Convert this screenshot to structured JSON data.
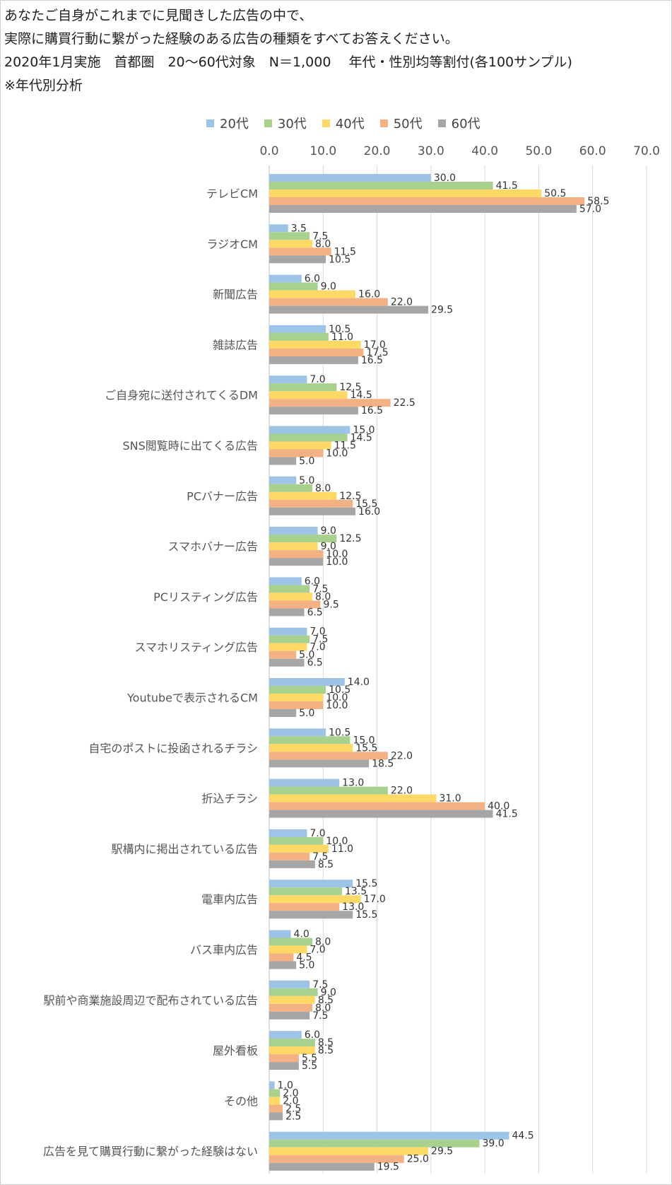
{
  "title_lines": [
    "あなたご自身がこれまでに見聞きした広告の中で、",
    "実際に購買行動に繋がった経験のある広告の種類をすべてお答えください。",
    "2020年1月実施　首都圏　20～60代対象　N＝1,000　 年代・性別均等割付(各100サンプル)",
    "※年代別分析"
  ],
  "chart_data": {
    "type": "bar",
    "orientation": "horizontal",
    "title": "あなたご自身がこれまでに見聞きした広告の中で、実際に購買行動に繋がった経験のある広告の種類をすべてお答えください。",
    "xlim": [
      0,
      70
    ],
    "xticks": [
      "0.0",
      "10.0",
      "20.0",
      "30.0",
      "40.0",
      "50.0",
      "60.0",
      "70.0"
    ],
    "grid": true,
    "legend_position": "top",
    "categories": [
      "テレビCM",
      "ラジオCM",
      "新聞広告",
      "雑誌広告",
      "ご自身宛に送付されてくるDM",
      "SNS閲覧時に出てくる広告",
      "PCバナー広告",
      "スマホバナー広告",
      "PCリスティング広告",
      "スマホリスティング広告",
      "Youtubeで表示されるCM",
      "自宅のポストに投函されるチラシ",
      "折込チラシ",
      "駅構内に掲出されている広告",
      "電車内広告",
      "バス車内広告",
      "駅前や商業施設周辺で配布されている広告",
      "屋外看板",
      "その他",
      "広告を見て購買行動に繋がった経験はない"
    ],
    "series": [
      {
        "name": "20代",
        "color": "#9dc3e6",
        "values": [
          30.0,
          3.5,
          6.0,
          10.5,
          7.0,
          15.0,
          5.0,
          9.0,
          6.0,
          7.0,
          14.0,
          10.5,
          13.0,
          7.0,
          15.5,
          4.0,
          7.5,
          6.0,
          1.0,
          44.5
        ]
      },
      {
        "name": "30代",
        "color": "#a9d18e",
        "values": [
          41.5,
          7.5,
          9.0,
          11.0,
          12.5,
          14.5,
          8.0,
          12.5,
          7.5,
          7.5,
          10.5,
          15.0,
          22.0,
          10.0,
          13.5,
          8.0,
          9.0,
          8.5,
          2.0,
          39.0
        ]
      },
      {
        "name": "40代",
        "color": "#ffd966",
        "values": [
          50.5,
          8.0,
          16.0,
          17.0,
          14.5,
          11.5,
          12.5,
          9.0,
          8.0,
          7.0,
          10.0,
          15.5,
          31.0,
          11.0,
          17.0,
          7.0,
          8.5,
          8.5,
          2.0,
          29.5
        ]
      },
      {
        "name": "50代",
        "color": "#f4b183",
        "values": [
          58.5,
          11.5,
          22.0,
          17.5,
          22.5,
          10.0,
          15.5,
          10.0,
          9.5,
          5.0,
          10.0,
          22.0,
          40.0,
          7.5,
          13.0,
          4.5,
          8.0,
          5.5,
          2.5,
          25.0
        ]
      },
      {
        "name": "60代",
        "color": "#a6a6a6",
        "values": [
          57.0,
          10.5,
          29.5,
          16.5,
          16.5,
          5.0,
          16.0,
          10.0,
          6.5,
          6.5,
          5.0,
          18.5,
          41.5,
          8.5,
          15.5,
          5.0,
          7.5,
          5.5,
          2.5,
          19.5
        ]
      }
    ]
  }
}
